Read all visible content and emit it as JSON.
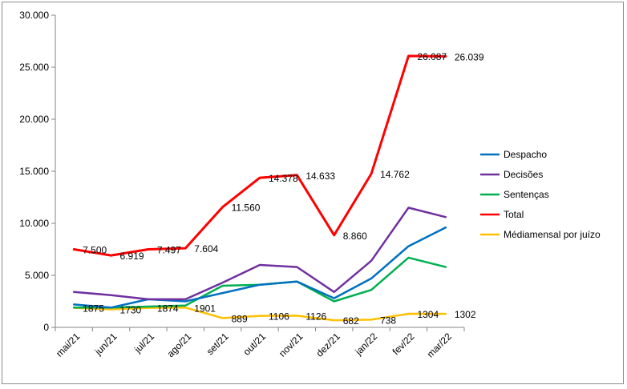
{
  "chart_data": {
    "type": "line",
    "categories": [
      "mai/21",
      "jun/21",
      "jul/21",
      "ago/21",
      "set/21",
      "out/21",
      "nov/21",
      "dez/21",
      "jan/22",
      "fev/22",
      "mar/22"
    ],
    "ylim": [
      0,
      30000
    ],
    "yticks": [
      0,
      5000,
      10000,
      15000,
      20000,
      25000,
      30000
    ],
    "ytick_labels": [
      "0",
      "5.000",
      "10.000",
      "15.000",
      "20.000",
      "25.000",
      "30.000"
    ],
    "grid": false,
    "legend_position": "right",
    "series": [
      {
        "name": "Despacho",
        "color": "#0070c0",
        "values": [
          2200,
          1900,
          2700,
          2500,
          3300,
          4100,
          4400,
          2800,
          4700,
          7800,
          9600
        ]
      },
      {
        "name": "Decisões",
        "color": "#7030a0",
        "values": [
          3400,
          3100,
          2700,
          2700,
          4300,
          6000,
          5800,
          3400,
          6400,
          11500,
          10600
        ]
      },
      {
        "name": "Sentenças",
        "color": "#00b050",
        "values": [
          1900,
          1900,
          2000,
          2100,
          4000,
          4100,
          4400,
          2500,
          3600,
          6700,
          5800
        ]
      },
      {
        "name": "Total",
        "color": "#ff0000",
        "values": [
          7500,
          6919,
          7497,
          7604,
          11560,
          14378,
          14633,
          8860,
          14762,
          26087,
          26039
        ],
        "labels": [
          "7.500",
          "6.919",
          "7.497",
          "7.604",
          "11.560",
          "14.378",
          "14.633",
          "8.860",
          "14.762",
          "26.087",
          "26.039"
        ]
      },
      {
        "name": "Médiamensal por juízo",
        "color": "#ffc000",
        "values": [
          1875,
          1730,
          1874,
          1901,
          889,
          1106,
          1126,
          682,
          738,
          1304,
          1302
        ],
        "labels": [
          "1875",
          "1730",
          "1874",
          "1901",
          "889",
          "1106",
          "1126",
          "682",
          "738",
          "1304",
          "1302"
        ]
      }
    ]
  }
}
